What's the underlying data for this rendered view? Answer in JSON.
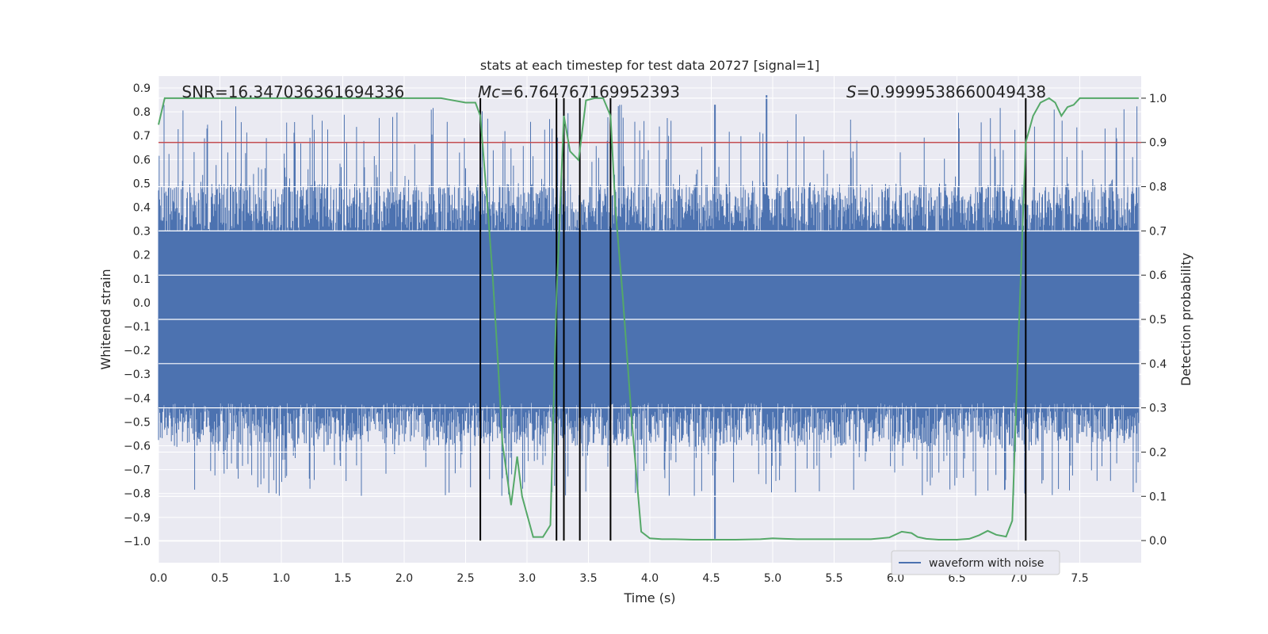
{
  "chart_data": {
    "type": "line",
    "title": "stats at each timestep for test data 20727 [signal=1]",
    "xlabel": "Time (s)",
    "ylabel": "Whitened strain",
    "y2label": "Detection probability",
    "xlim": [
      0.0,
      8.0
    ],
    "ylim": [
      -1.09,
      0.95
    ],
    "y2lim": [
      -0.05,
      1.05
    ],
    "xticks": [
      "0.0",
      "0.5",
      "1.0",
      "1.5",
      "2.0",
      "2.5",
      "3.0",
      "3.5",
      "4.0",
      "4.5",
      "5.0",
      "5.5",
      "6.0",
      "6.5",
      "7.0",
      "7.5"
    ],
    "yticks": [
      "0.9",
      "0.8",
      "0.7",
      "0.6",
      "0.5",
      "0.4",
      "0.3",
      "0.2",
      "0.1",
      "0.0",
      "−0.1",
      "−0.2",
      "−0.3",
      "−0.4",
      "−0.5",
      "−0.6",
      "−0.7",
      "−0.8",
      "−0.9",
      "−1.0"
    ],
    "y2ticks": [
      "1.0",
      "0.9",
      "0.8",
      "0.7",
      "0.6",
      "0.5",
      "0.4",
      "0.3",
      "0.2",
      "0.1",
      "0.0"
    ],
    "grid": true,
    "annotations": [
      {
        "prefix": "SNR",
        "text": "SNR=16.347036361694336",
        "x": 0.19
      },
      {
        "prefix": "Mc",
        "text": "=6.764767169952393",
        "x": 2.6
      },
      {
        "prefix": "S",
        "text": "=0.9999538660049438",
        "x": 5.6
      }
    ],
    "threshold": {
      "value": 0.9,
      "axis": "y2",
      "color": "#c44e52"
    },
    "vlines": [
      2.62,
      3.24,
      3.3,
      3.43,
      3.68,
      7.06
    ],
    "series": [
      {
        "name": "waveform with noise",
        "color": "#4c72b0",
        "envelope_max": 0.83,
        "envelope_min": -0.99,
        "time_range": [
          0.0,
          7.98
        ]
      },
      {
        "color": "#55a868",
        "axis": "y2",
        "x": [
          0.0,
          0.05,
          0.2,
          0.4,
          0.6,
          0.8,
          1.0,
          1.2,
          1.4,
          1.6,
          1.8,
          2.0,
          2.2,
          2.3,
          2.4,
          2.5,
          2.58,
          2.62,
          2.68,
          2.72,
          2.76,
          2.8,
          2.87,
          2.92,
          2.96,
          3.05,
          3.13,
          3.19,
          3.24,
          3.3,
          3.35,
          3.42,
          3.48,
          3.55,
          3.62,
          3.68,
          3.72,
          3.78,
          3.85,
          3.93,
          4.0,
          4.1,
          4.2,
          4.35,
          4.5,
          4.7,
          4.9,
          5.0,
          5.1,
          5.2,
          5.4,
          5.6,
          5.8,
          5.95,
          6.05,
          6.13,
          6.18,
          6.25,
          6.35,
          6.5,
          6.6,
          6.68,
          6.75,
          6.82,
          6.9,
          6.95,
          7.0,
          7.06,
          7.12,
          7.18,
          7.25,
          7.3,
          7.35,
          7.4,
          7.45,
          7.5,
          7.6,
          7.75,
          7.98
        ],
        "y": [
          0.94,
          1.0,
          1.0,
          1.0,
          1.0,
          1.0,
          1.0,
          1.0,
          1.0,
          1.0,
          1.0,
          1.0,
          1.0,
          1.0,
          0.995,
          0.99,
          0.99,
          0.96,
          0.75,
          0.6,
          0.42,
          0.22,
          0.08,
          0.19,
          0.1,
          0.008,
          0.008,
          0.035,
          0.55,
          0.96,
          0.88,
          0.86,
          0.995,
          1.0,
          1.0,
          0.96,
          0.75,
          0.55,
          0.28,
          0.02,
          0.005,
          0.003,
          0.003,
          0.002,
          0.002,
          0.002,
          0.003,
          0.005,
          0.004,
          0.003,
          0.003,
          0.003,
          0.003,
          0.007,
          0.02,
          0.017,
          0.008,
          0.004,
          0.002,
          0.002,
          0.004,
          0.012,
          0.022,
          0.013,
          0.009,
          0.045,
          0.45,
          0.9,
          0.96,
          0.99,
          1.0,
          0.99,
          0.96,
          0.98,
          0.985,
          1.0,
          1.0,
          1.0,
          1.0
        ]
      }
    ],
    "legend": {
      "placement": "lower-right",
      "entries": [
        "waveform with noise"
      ]
    }
  }
}
